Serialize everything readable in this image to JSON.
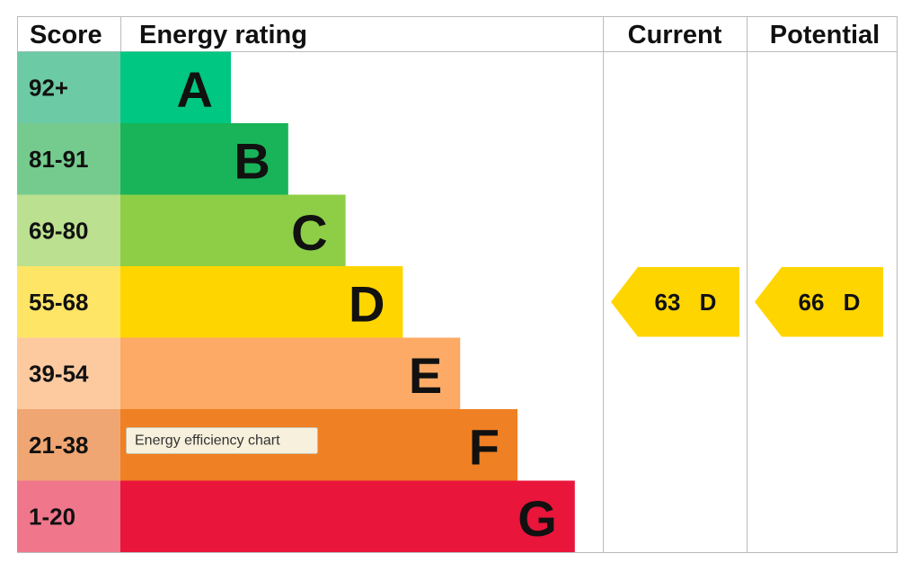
{
  "header": {
    "score": "Score",
    "rating": "Energy rating",
    "current": "Current",
    "potential": "Potential"
  },
  "bands": [
    {
      "score": "92+",
      "letter": "A",
      "color": "#00c781",
      "score_color": "#6ccaa5"
    },
    {
      "score": "81-91",
      "letter": "B",
      "color": "#19b459",
      "score_color": "#74cb8d"
    },
    {
      "score": "69-80",
      "letter": "C",
      "color": "#8dce46",
      "score_color": "#bbe090"
    },
    {
      "score": "55-68",
      "letter": "D",
      "color": "#ffd500",
      "score_color": "#ffe566"
    },
    {
      "score": "39-54",
      "letter": "E",
      "color": "#fcaa65",
      "score_color": "#fdcaa0"
    },
    {
      "score": "21-38",
      "letter": "F",
      "color": "#ef8023",
      "score_color": "#f0a672"
    },
    {
      "score": "1-20",
      "letter": "G",
      "color": "#e9153b",
      "score_color": "#f0768c"
    }
  ],
  "current": {
    "score": 63,
    "letter": "D"
  },
  "potential": {
    "score": 66,
    "letter": "D"
  },
  "tooltip": "Energy efficiency chart"
}
